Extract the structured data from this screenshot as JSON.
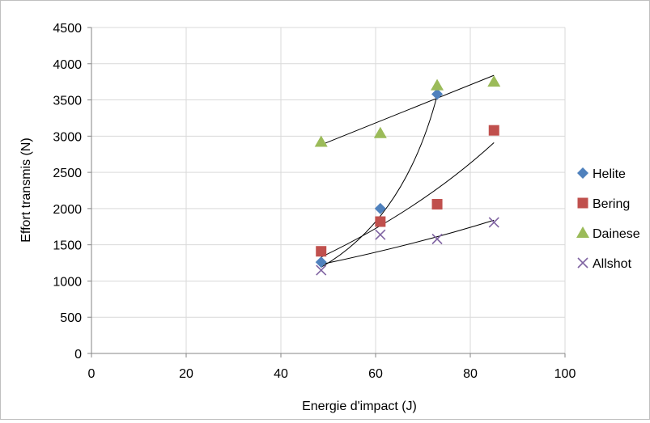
{
  "chart_data": {
    "type": "scatter",
    "xlabel": "Energie d'impact (J)",
    "ylabel": "Effort transmis (N)",
    "xlim": [
      0,
      100
    ],
    "ylim": [
      0,
      4500
    ],
    "xticks": [
      0,
      20,
      40,
      60,
      80,
      100
    ],
    "yticks": [
      0,
      500,
      1000,
      1500,
      2000,
      2500,
      3000,
      3500,
      4000,
      4500
    ],
    "grid": true,
    "legend_position": "right",
    "series": [
      {
        "name": "Helite",
        "marker": "diamond",
        "color": "#4f81bd",
        "x": [
          48.5,
          61,
          73
        ],
        "y": [
          1260,
          2000,
          3580
        ],
        "trend": {
          "x": [
            48.5,
            73
          ],
          "y": [
            1190,
            3560
          ]
        }
      },
      {
        "name": "Bering",
        "marker": "square",
        "color": "#c0504d",
        "x": [
          48.5,
          61,
          73,
          85
        ],
        "y": [
          1410,
          1820,
          2060,
          3080
        ],
        "trend": {
          "x": [
            48.5,
            85
          ],
          "y": [
            1330,
            2910
          ]
        }
      },
      {
        "name": "Dainese",
        "marker": "triangle",
        "color": "#9bbb59",
        "x": [
          48.5,
          61,
          73,
          85
        ],
        "y": [
          2920,
          3040,
          3700,
          3750
        ],
        "trend": {
          "x": [
            48.5,
            85
          ],
          "y": [
            2880,
            3840
          ]
        }
      },
      {
        "name": "Allshot",
        "marker": "x",
        "color": "#8064a2",
        "x": [
          48.5,
          61,
          73,
          85
        ],
        "y": [
          1150,
          1640,
          1580,
          1810
        ],
        "trend": {
          "x": [
            48.5,
            85
          ],
          "y": [
            1230,
            1840
          ]
        }
      }
    ]
  }
}
